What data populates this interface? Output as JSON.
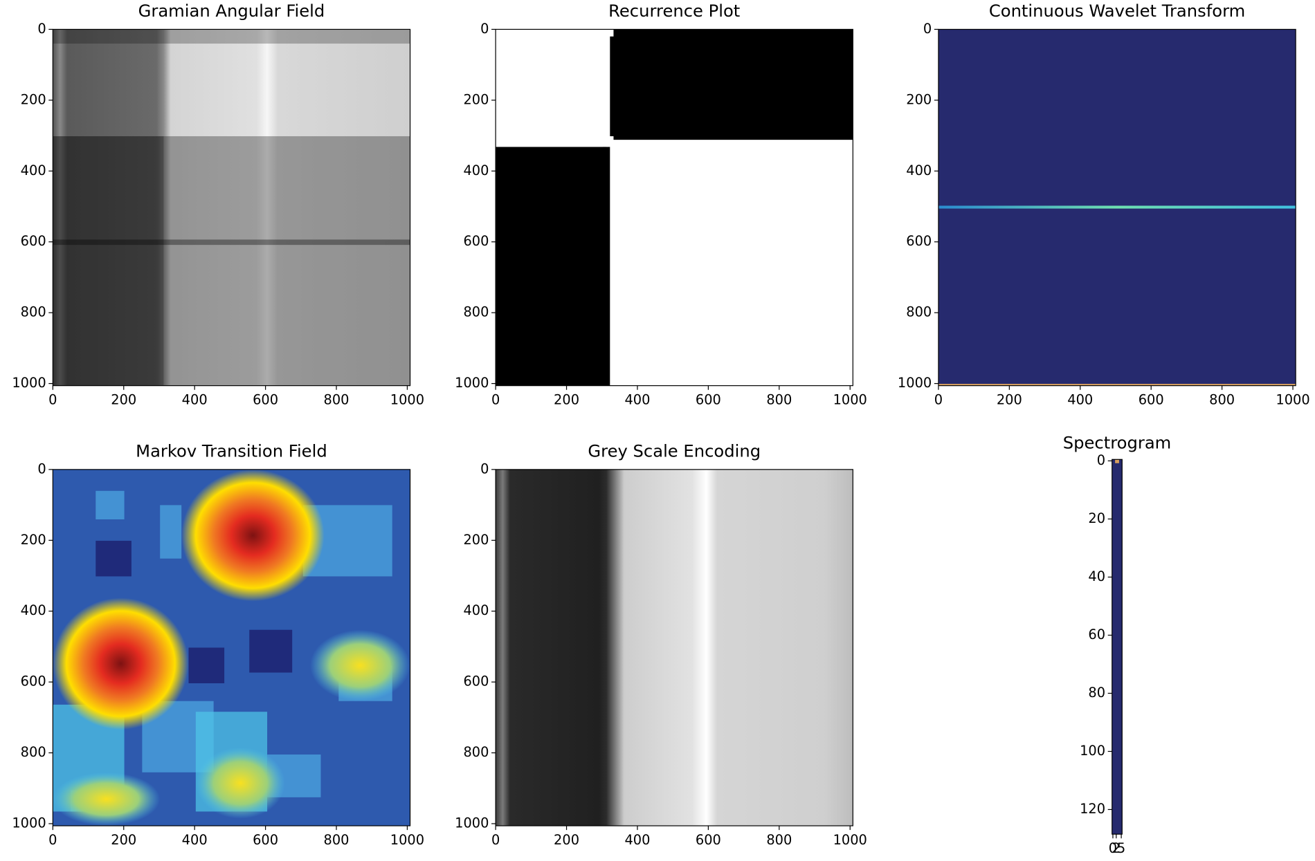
{
  "chart_data": [
    {
      "type": "image",
      "title": "Gramian Angular Field",
      "xlim": [
        0,
        1008
      ],
      "ylim": [
        1006,
        0
      ],
      "xticks": [
        0,
        200,
        400,
        600,
        800,
        1000
      ],
      "yticks": [
        0,
        200,
        400,
        600,
        800,
        1000
      ]
    },
    {
      "type": "image",
      "title": "Recurrence Plot",
      "xlim": [
        0,
        1008
      ],
      "ylim": [
        1006,
        0
      ],
      "xticks": [
        0,
        200,
        400,
        600,
        800,
        1000
      ],
      "yticks": [
        0,
        200,
        400,
        600,
        800,
        1000
      ]
    },
    {
      "type": "image",
      "title": "Continuous Wavelet Transform",
      "xlim": [
        0,
        1008
      ],
      "ylim": [
        1006,
        0
      ],
      "xticks": [
        0,
        200,
        400,
        600,
        800,
        1000
      ],
      "yticks": [
        0,
        200,
        400,
        600,
        800,
        1000
      ]
    },
    {
      "type": "image",
      "title": "Markov Transition Field",
      "xlim": [
        0,
        1008
      ],
      "ylim": [
        1006,
        0
      ],
      "xticks": [
        0,
        200,
        400,
        600,
        800,
        1000
      ],
      "yticks": [
        0,
        200,
        400,
        600,
        800,
        1000
      ]
    },
    {
      "type": "image",
      "title": "Grey Scale Encoding",
      "xlim": [
        0,
        1008
      ],
      "ylim": [
        1006,
        0
      ],
      "xticks": [
        0,
        200,
        400,
        600,
        800,
        1000
      ],
      "yticks": [
        0,
        200,
        400,
        600,
        800,
        1000
      ]
    },
    {
      "type": "image",
      "title": "Spectrogram",
      "xlim": [
        -0.5,
        5.5
      ],
      "ylim": [
        128.5,
        -0.5
      ],
      "xticks": [
        0,
        2,
        5
      ],
      "yticks": [
        0,
        20,
        40,
        60,
        80,
        100,
        120
      ]
    }
  ]
}
